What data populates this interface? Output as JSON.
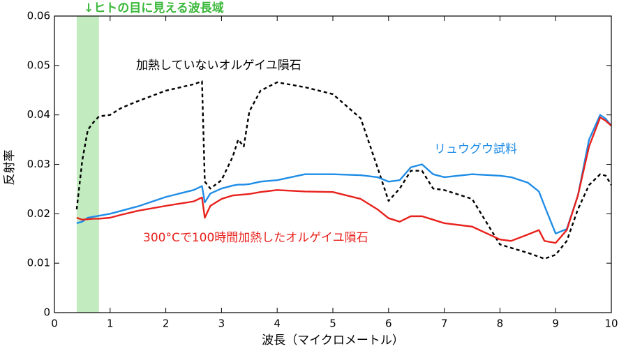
{
  "chart_data": {
    "type": "line",
    "xlabel": "波長（マイクロメートル）",
    "ylabel": "反射率",
    "annotation": "↓ヒトの目に見える波長域",
    "highlight_band": [
      0.4,
      0.8
    ],
    "highlight_color": "#c2ecc0",
    "annotation_color": "#3cb83c",
    "x": [
      0.4,
      0.5,
      0.6,
      0.7,
      0.8,
      1.0,
      1.2,
      1.5,
      2.0,
      2.5,
      2.65,
      2.7,
      2.8,
      3.0,
      3.2,
      3.3,
      3.4,
      3.5,
      3.7,
      4.0,
      4.5,
      5.0,
      5.5,
      5.8,
      6.0,
      6.2,
      6.4,
      6.6,
      6.8,
      7.0,
      7.5,
      8.0,
      8.2,
      8.5,
      8.7,
      8.8,
      9.0,
      9.2,
      9.4,
      9.6,
      9.8,
      9.9,
      10.0
    ],
    "series": [
      {
        "name": "加熱していないオルゲイユ隕石",
        "color": "#000000",
        "dashed": true,
        "values": [
          0.0209,
          0.0308,
          0.037,
          0.0385,
          0.0397,
          0.04,
          0.0414,
          0.0428,
          0.0449,
          0.0462,
          0.0468,
          0.0265,
          0.0251,
          0.0268,
          0.0315,
          0.035,
          0.0336,
          0.0407,
          0.0449,
          0.0466,
          0.0456,
          0.0442,
          0.0393,
          0.0294,
          0.0226,
          0.0251,
          0.0287,
          0.0287,
          0.0251,
          0.0248,
          0.023,
          0.0138,
          0.0131,
          0.0121,
          0.0113,
          0.0109,
          0.0117,
          0.0145,
          0.0209,
          0.0258,
          0.028,
          0.0277,
          0.0258
        ]
      },
      {
        "name": "リュウグウ試料",
        "color": "#1f8ce6",
        "dashed": false,
        "values": [
          0.0181,
          0.0184,
          0.0192,
          0.0194,
          0.0196,
          0.02,
          0.0206,
          0.0215,
          0.0234,
          0.0248,
          0.0256,
          0.0223,
          0.0241,
          0.0251,
          0.0257,
          0.0259,
          0.0259,
          0.026,
          0.0265,
          0.0268,
          0.028,
          0.028,
          0.0278,
          0.0274,
          0.0265,
          0.0268,
          0.0294,
          0.03,
          0.028,
          0.0274,
          0.028,
          0.0277,
          0.0274,
          0.0263,
          0.0245,
          0.0216,
          0.016,
          0.0169,
          0.0237,
          0.035,
          0.04,
          0.0392,
          0.0378
        ]
      },
      {
        "name": "300°Cで100時間加熱したオルゲイユ隕石",
        "color": "#e8211c",
        "dashed": false,
        "values": [
          0.0192,
          0.0188,
          0.0189,
          0.019,
          0.019,
          0.0192,
          0.0198,
          0.0206,
          0.0216,
          0.0225,
          0.0233,
          0.0192,
          0.0216,
          0.023,
          0.0237,
          0.0238,
          0.0239,
          0.024,
          0.0244,
          0.0248,
          0.0245,
          0.0244,
          0.023,
          0.0209,
          0.0191,
          0.0184,
          0.0195,
          0.0195,
          0.0188,
          0.0181,
          0.0174,
          0.0148,
          0.0145,
          0.0158,
          0.0167,
          0.0145,
          0.0141,
          0.0167,
          0.0237,
          0.0336,
          0.0395,
          0.0388,
          0.0378
        ]
      }
    ],
    "xlim": [
      0,
      10
    ],
    "xticks": [
      0,
      1,
      2,
      3,
      4,
      5,
      6,
      7,
      8,
      9,
      10
    ],
    "ylim": [
      0,
      0.06
    ],
    "yticks": [
      0,
      0.01,
      0.02,
      0.03,
      0.04,
      0.05,
      0.06
    ]
  }
}
